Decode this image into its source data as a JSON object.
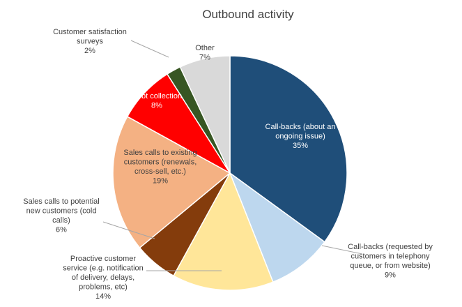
{
  "chart_data": {
    "type": "pie",
    "title": "Outbound activity",
    "start_angle_deg": 0,
    "direction": "clockwise",
    "legend": "none",
    "slices": [
      {
        "id": "callbacks-ongoing",
        "lines": [
          "Call-backs (about an",
          "ongoing issue)"
        ],
        "pct_label": "35%",
        "value": 35,
        "color": "#1f4e79"
      },
      {
        "id": "callbacks-requested",
        "lines": [
          "Call-backs (requested by",
          "customers in telephony",
          "queue, or from website)"
        ],
        "pct_label": "9%",
        "value": 9,
        "color": "#bdd7ee"
      },
      {
        "id": "proactive-service",
        "lines": [
          "Proactive customer",
          "service (e.g. notification",
          "of delivery, delays,",
          "problems, etc)"
        ],
        "pct_label": "14%",
        "value": 14,
        "color": "#ffe699"
      },
      {
        "id": "sales-potential",
        "lines": [
          "Sales calls to potential",
          "new customers (cold",
          "calls)"
        ],
        "pct_label": "6%",
        "value": 6,
        "color": "#843c0c"
      },
      {
        "id": "sales-existing",
        "lines": [
          "Sales calls to existing",
          "customers (renewals,",
          "cross-sell, etc.)"
        ],
        "pct_label": "19%",
        "value": 19,
        "color": "#f4b183"
      },
      {
        "id": "debt-collection",
        "lines": [
          "Debt collection"
        ],
        "pct_label": "8%",
        "value": 8,
        "color": "#ff0000"
      },
      {
        "id": "satisfaction-surveys",
        "lines": [
          "Customer satisfaction",
          "surveys"
        ],
        "pct_label": "2%",
        "value": 2,
        "color": "#375623"
      },
      {
        "id": "other",
        "lines": [
          "Other"
        ],
        "pct_label": "7%",
        "value": 7,
        "color": "#d9d9d9"
      }
    ]
  }
}
